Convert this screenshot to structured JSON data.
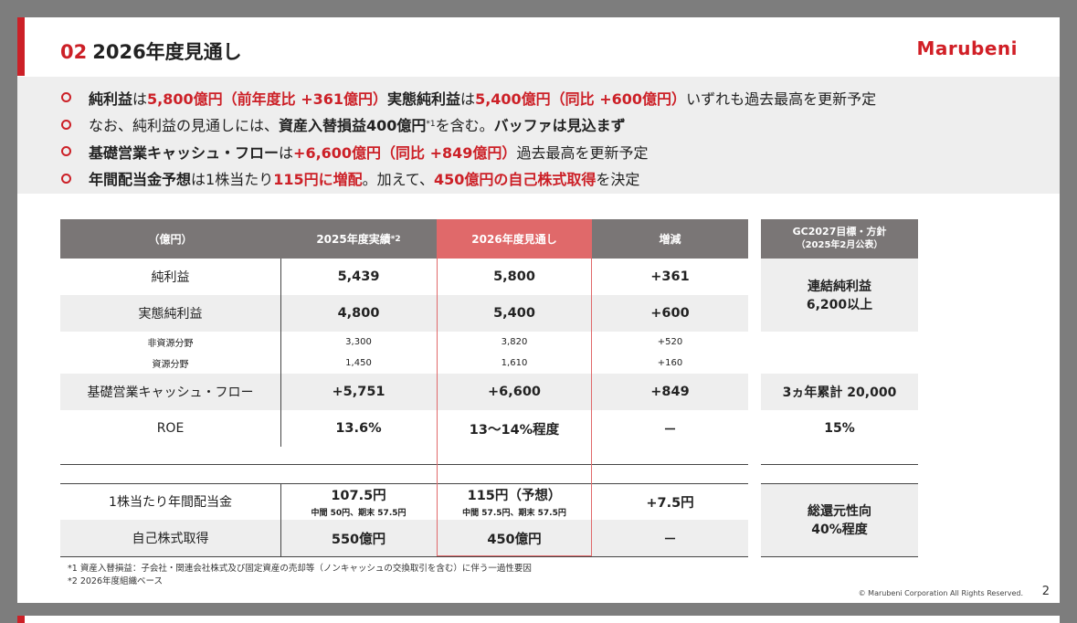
{
  "slide": {
    "title_num": "02",
    "title": "2026年度見通し",
    "logo": "Marubeni",
    "page_number": "2",
    "copyright": "© Marubeni Corporation All Rights Reserved."
  },
  "bullets": {
    "b1": {
      "p1": "純利益",
      "p2": "は ",
      "p3": "5,800億円（前年度比 +361億円）",
      "p4": " 実態純利益",
      "p5": "は ",
      "p6": "5,400億円（同比 +600億円）",
      "p7": " いずれも過去最高を更新予定"
    },
    "b2": {
      "p1": "なお、純利益の見通しには、",
      "p2": "資産入替損益400億円",
      "p3": "*1",
      "p4": "を含む。",
      "p5": "バッファは見込まず"
    },
    "b3": {
      "p1": "基礎営業キャッシュ・フロー",
      "p2": "は ",
      "p3": "+6,600億円（同比 +849億円）",
      "p4": " 過去最高を更新予定"
    },
    "b4": {
      "p1": "年間配当金予想",
      "p2": "は1株当たり",
      "p3": "115円に増配",
      "p4": "。加えて、",
      "p5": "450億円の自己株式取得",
      "p6": "を決定"
    }
  },
  "table": {
    "headers": {
      "unit": "（億円）",
      "actual": "2025年度実績",
      "actual_sup": "*2",
      "forecast": "2026年度見通し",
      "change": "増減"
    },
    "rows": {
      "net_income": {
        "label": "純利益",
        "actual": "5,439",
        "forecast": "5,800",
        "change": "+361"
      },
      "core_net_income": {
        "label": "実態純利益",
        "actual": "4,800",
        "forecast": "5,400",
        "change": "+600"
      },
      "non_resource": {
        "label": "非資源分野",
        "actual": "3,300",
        "forecast": "3,820",
        "change": "+520"
      },
      "resource": {
        "label": "資源分野",
        "actual": "1,450",
        "forecast": "1,610",
        "change": "+160"
      },
      "core_cf": {
        "label": "基礎営業キャッシュ・フロー",
        "actual": "+5,751",
        "forecast": "+6,600",
        "change": "+849"
      },
      "roe": {
        "label": "ROE",
        "actual": "13.6%",
        "forecast": "13〜14%程度",
        "change": "－"
      },
      "dividend": {
        "label": "1株当たり年間配当金",
        "actual": "107.5円",
        "actual_sub": "中間 50円、期末 57.5円",
        "forecast": "115円（予想）",
        "forecast_sub": "中間 57.5円、期末 57.5円",
        "change": "+7.5円"
      },
      "buyback": {
        "label": "自己株式取得",
        "actual": "550億円",
        "forecast": "450億円",
        "change": "－"
      }
    }
  },
  "gc2027": {
    "header_line1": "GC2027目標・方針",
    "header_line2": "（2025年2月公表）",
    "net_income_line1": "連結純利益",
    "net_income_line2": "6,200以上",
    "cf": "3ヵ年累計 20,000",
    "roe": "15%",
    "payout_line1": "総還元性向",
    "payout_line2": "40%程度"
  },
  "notes": {
    "n1": "*1 資産入替損益：子会社・関連会社株式及び固定資産の売却等（ノンキャッシュの交換取引を含む）に伴う一過性要因",
    "n2": "*2 2026年度組織ベース"
  },
  "colors": {
    "accent": "#cc2027",
    "header_gray": "#7a7676",
    "highlight": "#e0696a",
    "shade": "#eeeeee"
  }
}
